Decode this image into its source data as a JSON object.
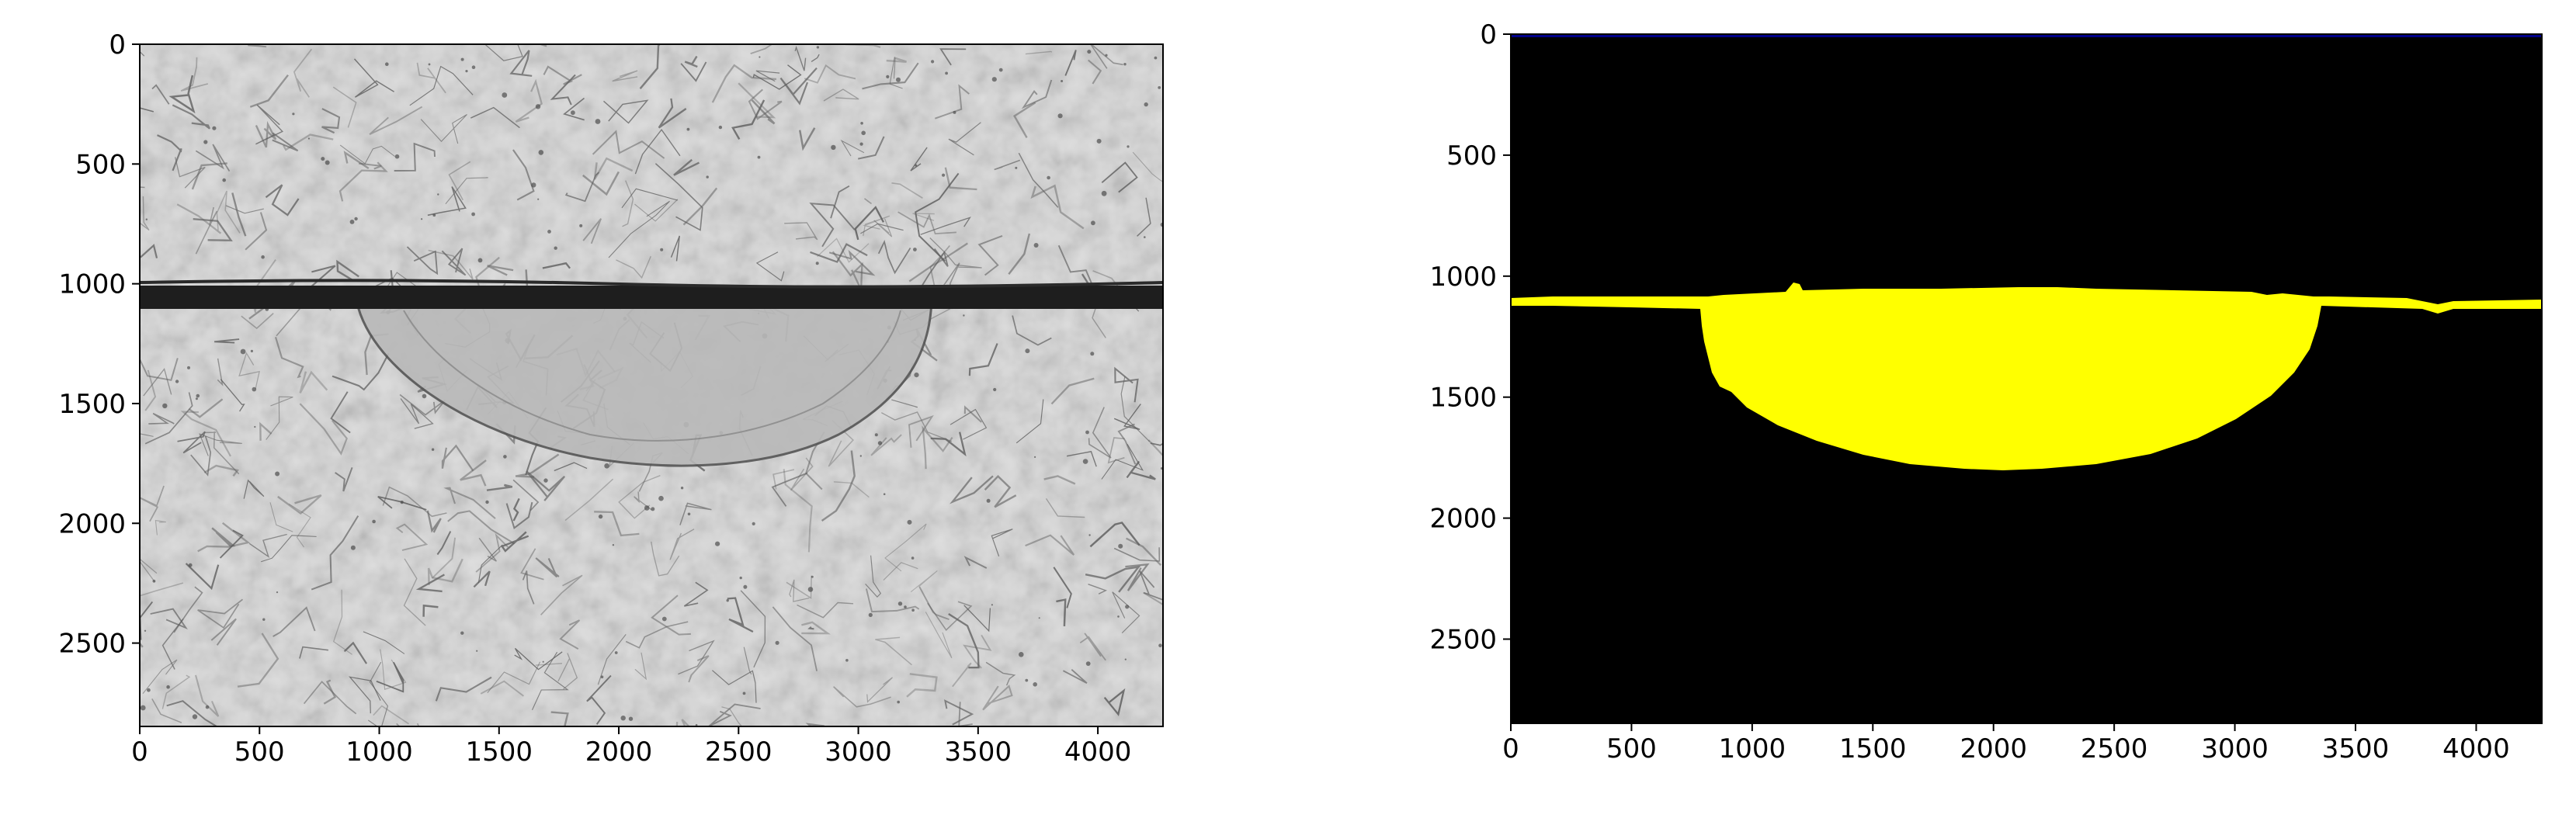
{
  "panels": [
    {
      "name": "micrograph",
      "image_kind": "grayscale micrograph of a weld cross-section",
      "x_ticks": [
        "0",
        "500",
        "1000",
        "1500",
        "2000",
        "2500",
        "3000",
        "3500",
        "4000"
      ],
      "y_ticks": [
        "0",
        "500",
        "1000",
        "1500",
        "2000",
        "2500"
      ],
      "xlim": [
        0,
        4272
      ],
      "ylim": [
        2848,
        0
      ]
    },
    {
      "name": "segmentation-mask",
      "image_kind": "binary segmentation mask (yellow region on black)",
      "x_ticks": [
        "0",
        "500",
        "1000",
        "1500",
        "2000",
        "2500",
        "3000",
        "3500",
        "4000"
      ],
      "y_ticks": [
        "0",
        "500",
        "1000",
        "1500",
        "2000",
        "2500"
      ],
      "xlim": [
        0,
        4272
      ],
      "ylim": [
        2848,
        0
      ]
    }
  ],
  "colors": {
    "mask_region": "#ffff00",
    "mask_background": "#000000",
    "mask_top_border": "#00008b",
    "micrograph_background": "#dedede",
    "micrograph_band": "#1e1e1e"
  }
}
